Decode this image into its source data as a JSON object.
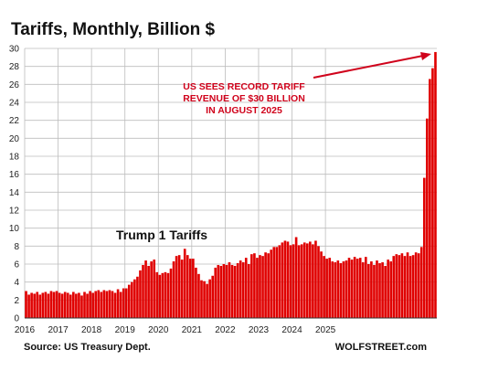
{
  "chart_data": {
    "type": "bar",
    "title": "Tariffs, Monthly, Billion $",
    "xlabel": "",
    "ylabel": "",
    "ylim": [
      0,
      30
    ],
    "y_ticks": [
      0,
      2,
      4,
      6,
      8,
      10,
      12,
      14,
      16,
      18,
      20,
      22,
      24,
      26,
      28,
      30
    ],
    "x_ticks": [
      "2016",
      "2017",
      "2018",
      "2019",
      "2020",
      "2021",
      "2022",
      "2023",
      "2024",
      "2025"
    ],
    "grid": true,
    "bar_color": "#e00000",
    "grid_color": "#bdbdbd",
    "start": "2016-01",
    "values": [
      3.0,
      2.6,
      2.8,
      2.7,
      2.9,
      2.6,
      2.8,
      2.9,
      2.7,
      3.0,
      2.9,
      3.0,
      2.8,
      2.7,
      2.9,
      2.8,
      2.6,
      2.9,
      2.7,
      2.8,
      2.5,
      2.9,
      2.7,
      3.0,
      2.8,
      3.0,
      3.1,
      2.9,
      3.1,
      3.0,
      3.1,
      3.0,
      2.8,
      3.2,
      2.9,
      3.3,
      3.3,
      3.7,
      4.0,
      4.3,
      4.6,
      5.3,
      5.9,
      6.4,
      5.8,
      6.3,
      6.5,
      5.1,
      4.8,
      5.0,
      5.1,
      5.0,
      5.5,
      6.3,
      6.9,
      7.0,
      6.5,
      7.7,
      7.0,
      6.6,
      6.6,
      5.6,
      4.9,
      4.2,
      4.1,
      3.8,
      4.3,
      4.7,
      5.6,
      5.9,
      5.8,
      6.0,
      5.9,
      6.2,
      5.9,
      5.8,
      6.1,
      6.4,
      6.2,
      6.7,
      6.0,
      7.1,
      7.2,
      6.7,
      7.0,
      6.9,
      7.3,
      7.2,
      7.6,
      7.9,
      7.9,
      8.1,
      8.4,
      8.6,
      8.5,
      8.1,
      8.2,
      9.0,
      8.1,
      8.2,
      8.4,
      8.3,
      8.5,
      8.2,
      8.6,
      8.0,
      7.4,
      6.9,
      6.6,
      6.7,
      6.3,
      6.2,
      6.4,
      6.1,
      6.3,
      6.4,
      6.7,
      6.5,
      6.8,
      6.6,
      6.7,
      6.2,
      6.8,
      6.0,
      6.3,
      5.9,
      6.4,
      6.1,
      6.2,
      5.8,
      6.5,
      6.3,
      6.9,
      7.1,
      7.0,
      7.2,
      6.9,
      7.3,
      6.9,
      7.0,
      7.3,
      7.2,
      7.9,
      15.6,
      22.2,
      26.6,
      27.8,
      29.6
    ],
    "annotation": [
      "US SEES RECORD TARIFF",
      "REVENUE OF $30 BILLION",
      "IN AUGUST 2025"
    ],
    "inline_label": "Trump 1 Tariffs",
    "source": "Source: US Treasury Dept.",
    "watermark": "WOLFSTREET.com"
  }
}
